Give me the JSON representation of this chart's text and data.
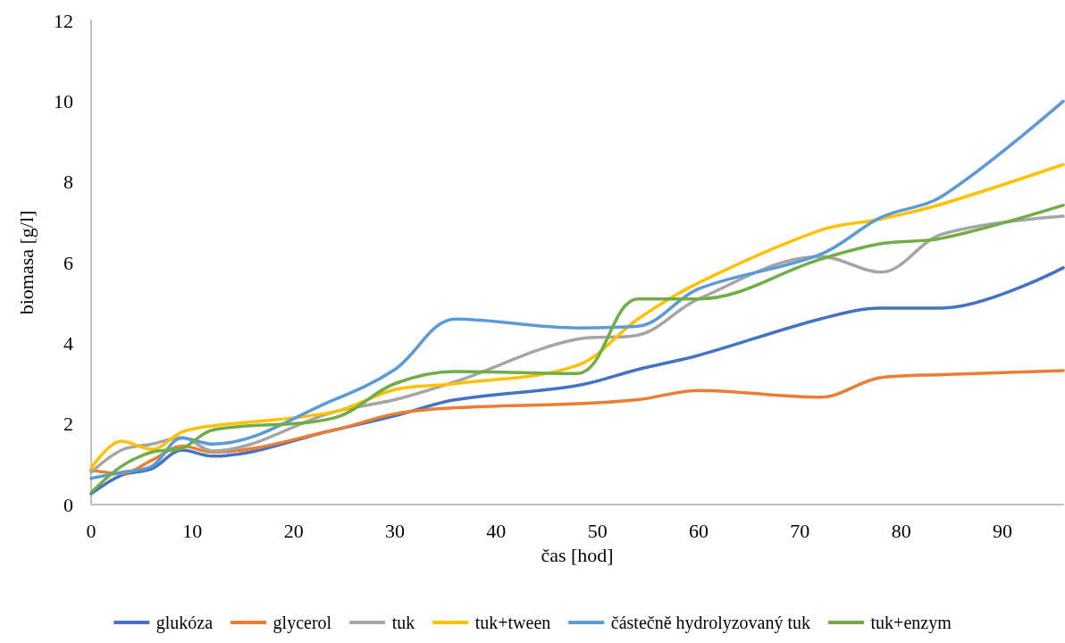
{
  "chart_data": {
    "type": "line",
    "xlabel": "čas [hod]",
    "ylabel": "biomasa [g/l]",
    "x": [
      0,
      3,
      6,
      9,
      12,
      24,
      30,
      36,
      48,
      54,
      60,
      72,
      78,
      84,
      96
    ],
    "xlim": [
      0,
      96
    ],
    "xticks": [
      0,
      10,
      20,
      30,
      40,
      50,
      60,
      70,
      80,
      90
    ],
    "ylim": [
      0,
      12
    ],
    "yticks": [
      0,
      2,
      4,
      6,
      8,
      10,
      12
    ],
    "grid": false,
    "legend": "bottom",
    "marker": "none",
    "line_style": "solid",
    "series": [
      {
        "name": "glukóza",
        "color": "#4472c4",
        "values": [
          0.27,
          0.73,
          0.89,
          1.35,
          1.2,
          1.85,
          2.2,
          2.6,
          2.95,
          3.35,
          3.7,
          4.6,
          4.87,
          4.87,
          5.87
        ]
      },
      {
        "name": "glycerol",
        "color": "#ed7d31",
        "values": [
          0.85,
          0.77,
          1.1,
          1.45,
          1.3,
          1.85,
          2.25,
          2.4,
          2.5,
          2.6,
          2.83,
          2.66,
          3.15,
          3.22,
          3.32
        ]
      },
      {
        "name": "tuk",
        "color": "#a5a5a5",
        "values": [
          0.8,
          1.35,
          1.5,
          1.66,
          1.33,
          2.3,
          2.6,
          3.05,
          4.1,
          4.2,
          5.1,
          6.15,
          5.76,
          6.7,
          7.15
        ]
      },
      {
        "name": "tuk+tween",
        "color": "#ffc000",
        "values": [
          0.9,
          1.57,
          1.37,
          1.8,
          1.95,
          2.3,
          2.85,
          3.0,
          3.45,
          4.6,
          5.5,
          6.8,
          7.08,
          7.45,
          8.43
        ]
      },
      {
        "name": "částečně hydrolyzovaný tuk",
        "color": "#5b9bd5",
        "values": [
          0.65,
          0.8,
          0.95,
          1.65,
          1.5,
          2.6,
          3.35,
          4.6,
          4.38,
          4.42,
          5.35,
          6.2,
          7.12,
          7.64,
          10.0
        ]
      },
      {
        "name": "tuk+enzym",
        "color": "#70ad47",
        "values": [
          0.3,
          0.95,
          1.3,
          1.4,
          1.85,
          2.15,
          3.0,
          3.3,
          3.25,
          5.1,
          5.1,
          6.08,
          6.47,
          6.6,
          7.42
        ]
      }
    ]
  }
}
